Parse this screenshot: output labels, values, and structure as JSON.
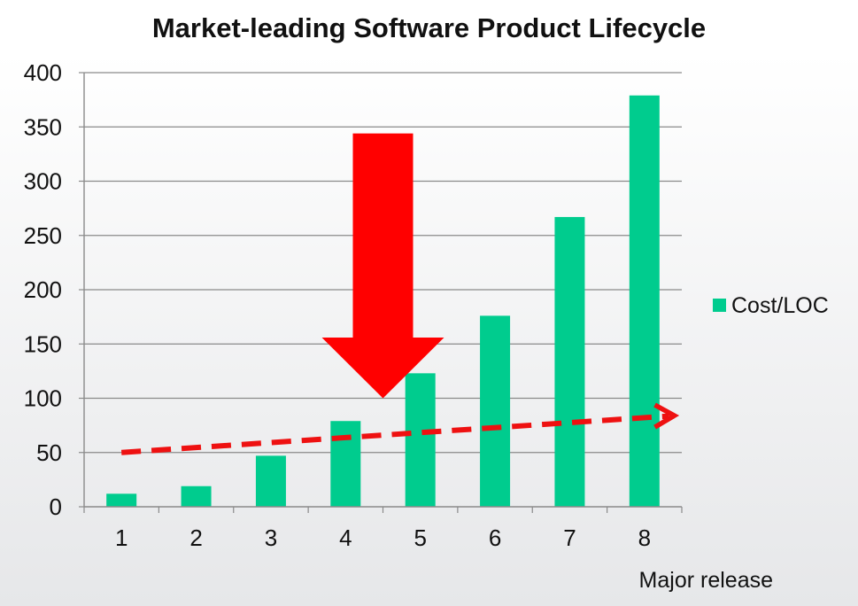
{
  "chart_data": {
    "type": "bar",
    "title": "Market-leading Software Product Lifecycle",
    "xlabel": "Major release",
    "ylabel": "",
    "categories": [
      "1",
      "2",
      "3",
      "4",
      "5",
      "6",
      "7",
      "8"
    ],
    "series": [
      {
        "name": "Cost/LOC",
        "values": [
          12,
          19,
          47,
          79,
          123,
          176,
          267,
          379
        ],
        "color": "#00cc8e"
      }
    ],
    "ylim": [
      0,
      400
    ],
    "yticks": [
      0,
      50,
      100,
      150,
      200,
      250,
      300,
      350,
      400
    ],
    "grid": true,
    "legend_position": "right",
    "annotations": {
      "down_arrow": {
        "color": "#ff0000",
        "x_category": 4.5,
        "y_top": 344,
        "y_tip": 100
      },
      "trend_arrow": {
        "color": "#ee1111",
        "style": "dashed",
        "from": {
          "x": 1,
          "y": 50
        },
        "to": {
          "x": 8.4,
          "y": 84
        }
      }
    }
  }
}
